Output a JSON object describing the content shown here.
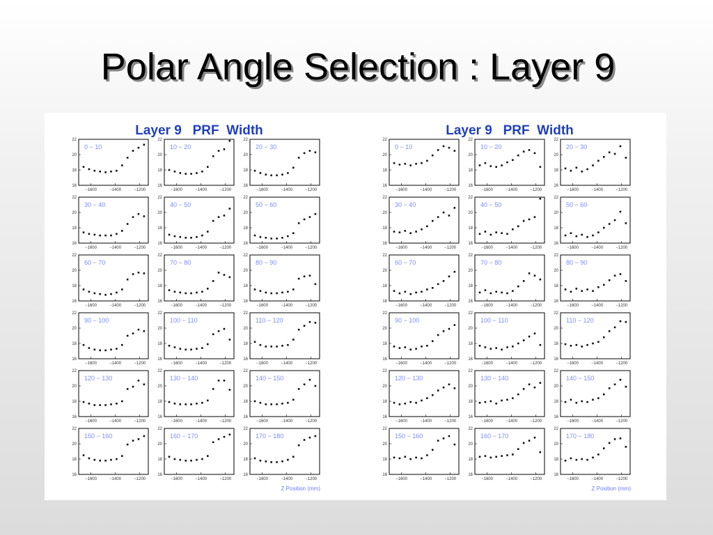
{
  "title": "Polar Angle Selection : Layer 9",
  "panels": [
    {
      "title": "Layer 9   PRF  Width",
      "x_label": "Z Position (mm)",
      "x": [
        -1660,
        -1615,
        -1570,
        -1525,
        -1480,
        -1435,
        -1390,
        -1345,
        -1300,
        -1255,
        -1210,
        -1165
      ],
      "xlim": [
        -1700,
        -1130
      ],
      "ylim": [
        16,
        22
      ],
      "xticks": [
        {
          "value": -1600,
          "label": "−1600"
        },
        {
          "value": -1400,
          "label": "−1400"
        },
        {
          "value": -1200,
          "label": "−1200"
        }
      ],
      "yticks": [
        16,
        18,
        20,
        22
      ],
      "charts": [
        {
          "type": "scatter",
          "label": "0 − 10",
          "values": [
            18.4,
            18.1,
            17.9,
            17.8,
            17.7,
            17.8,
            17.9,
            18.6,
            19.6,
            20.5,
            20.9,
            21.3
          ]
        },
        {
          "type": "scatter",
          "label": "10 − 20",
          "values": [
            18.0,
            17.8,
            17.6,
            17.5,
            17.5,
            17.6,
            17.8,
            18.4,
            19.8,
            20.5,
            20.7,
            21.8
          ]
        },
        {
          "type": "scatter",
          "label": "20 − 30",
          "values": [
            17.9,
            17.6,
            17.4,
            17.3,
            17.3,
            17.4,
            17.6,
            18.3,
            19.6,
            20.2,
            20.5,
            20.3
          ]
        },
        {
          "type": "scatter",
          "label": "30 − 40",
          "values": [
            17.4,
            17.2,
            17.1,
            17.0,
            17.0,
            17.0,
            17.2,
            17.6,
            18.5,
            19.4,
            19.8,
            19.5
          ]
        },
        {
          "type": "scatter",
          "label": "40 − 50",
          "values": [
            17.1,
            16.9,
            16.8,
            16.7,
            16.7,
            16.8,
            17.0,
            17.5,
            18.9,
            19.4,
            19.6,
            20.5
          ]
        },
        {
          "type": "scatter",
          "label": "50 − 60",
          "values": [
            17.0,
            16.8,
            16.7,
            16.6,
            16.6,
            16.7,
            16.9,
            17.3,
            18.6,
            19.1,
            19.4,
            19.8
          ]
        },
        {
          "type": "scatter",
          "label": "60 − 70",
          "values": [
            17.5,
            17.2,
            17.0,
            16.9,
            16.8,
            16.9,
            17.1,
            17.5,
            18.8,
            19.5,
            19.7,
            19.6
          ]
        },
        {
          "type": "scatter",
          "label": "70 − 80",
          "values": [
            17.4,
            17.2,
            17.1,
            17.0,
            17.0,
            17.1,
            17.2,
            17.6,
            18.6,
            19.7,
            19.4,
            19.1
          ]
        },
        {
          "type": "scatter",
          "label": "80 − 90",
          "values": [
            17.5,
            17.3,
            17.1,
            17.0,
            17.0,
            17.1,
            17.2,
            17.5,
            18.9,
            19.2,
            19.3,
            18.2
          ]
        },
        {
          "type": "scatter",
          "label": "90 − 100",
          "values": [
            17.8,
            17.4,
            17.2,
            17.1,
            17.1,
            17.2,
            17.3,
            17.8,
            19.0,
            19.3,
            19.8,
            19.6
          ]
        },
        {
          "type": "scatter",
          "label": "100 − 110",
          "values": [
            17.7,
            17.5,
            17.3,
            17.2,
            17.2,
            17.3,
            17.4,
            17.9,
            19.2,
            19.6,
            19.9,
            18.5
          ]
        },
        {
          "type": "scatter",
          "label": "110 − 120",
          "values": [
            18.2,
            17.8,
            17.6,
            17.6,
            17.6,
            17.7,
            17.8,
            18.5,
            19.8,
            20.3,
            20.8,
            20.7
          ]
        },
        {
          "type": "scatter",
          "label": "120 − 130",
          "values": [
            17.9,
            17.7,
            17.5,
            17.5,
            17.5,
            17.6,
            17.7,
            18.0,
            19.6,
            19.9,
            20.7,
            20.2
          ]
        },
        {
          "type": "scatter",
          "label": "130 − 140",
          "values": [
            17.9,
            17.7,
            17.6,
            17.6,
            17.6,
            17.7,
            17.8,
            18.1,
            19.6,
            20.7,
            20.7,
            19.5
          ]
        },
        {
          "type": "scatter",
          "label": "140 − 150",
          "values": [
            18.0,
            17.8,
            17.6,
            17.6,
            17.6,
            17.7,
            17.8,
            18.2,
            19.6,
            20.2,
            20.8,
            20.0
          ]
        },
        {
          "type": "scatter",
          "label": "150 − 160",
          "values": [
            18.5,
            18.1,
            17.9,
            17.8,
            17.8,
            17.9,
            18.0,
            18.4,
            19.9,
            20.4,
            20.6,
            21.0
          ]
        },
        {
          "type": "scatter",
          "label": "160 − 170",
          "values": [
            18.3,
            18.0,
            17.9,
            17.8,
            17.8,
            17.9,
            18.0,
            18.4,
            20.2,
            20.6,
            20.9,
            21.2
          ]
        },
        {
          "type": "scatter",
          "label": "170 − 180",
          "values": [
            18.1,
            17.8,
            17.7,
            17.6,
            17.6,
            17.7,
            17.9,
            18.3,
            19.8,
            20.5,
            20.8,
            21.0
          ]
        }
      ]
    },
    {
      "title": "Layer 9   PRF  Width",
      "x_label": "Z Position (mm)",
      "x": [
        -1660,
        -1615,
        -1570,
        -1525,
        -1480,
        -1435,
        -1390,
        -1345,
        -1300,
        -1255,
        -1210,
        -1165
      ],
      "xlim": [
        -1700,
        -1130
      ],
      "ylim": [
        16,
        22
      ],
      "xticks": [
        {
          "value": -1600,
          "label": "−1600"
        },
        {
          "value": -1400,
          "label": "−1400"
        },
        {
          "value": -1200,
          "label": "−1200"
        }
      ],
      "yticks": [
        16,
        18,
        20,
        22
      ],
      "charts": [
        {
          "type": "scatter",
          "label": "0 − 10",
          "values": [
            18.9,
            18.7,
            18.8,
            18.6,
            18.8,
            18.9,
            19.2,
            19.9,
            20.6,
            21.1,
            20.9,
            20.5
          ]
        },
        {
          "type": "scatter",
          "label": "10 − 20",
          "values": [
            18.6,
            18.9,
            18.5,
            18.4,
            18.6,
            19.0,
            19.3,
            19.9,
            20.4,
            20.6,
            20.2,
            18.4
          ]
        },
        {
          "type": "scatter",
          "label": "20 − 30",
          "values": [
            18.2,
            17.9,
            18.3,
            17.8,
            18.1,
            18.6,
            19.2,
            19.7,
            20.3,
            20.1,
            21.1,
            19.6
          ]
        },
        {
          "type": "scatter",
          "label": "30 − 40",
          "values": [
            17.5,
            17.4,
            17.6,
            17.3,
            17.5,
            17.8,
            18.2,
            18.9,
            19.4,
            20.0,
            19.6,
            20.6
          ]
        },
        {
          "type": "scatter",
          "label": "40 − 50",
          "values": [
            17.2,
            17.5,
            17.1,
            17.4,
            17.3,
            17.2,
            17.8,
            18.2,
            18.9,
            19.1,
            19.4,
            21.8
          ]
        },
        {
          "type": "scatter",
          "label": "50 − 60",
          "values": [
            17.0,
            17.3,
            16.9,
            17.1,
            16.8,
            17.0,
            17.4,
            18.0,
            18.5,
            19.0,
            20.1,
            18.6
          ]
        },
        {
          "type": "scatter",
          "label": "60 − 70",
          "values": [
            17.3,
            17.0,
            17.2,
            16.9,
            17.1,
            17.2,
            17.5,
            17.7,
            18.2,
            18.6,
            19.2,
            19.8
          ]
        },
        {
          "type": "scatter",
          "label": "70 − 80",
          "values": [
            17.1,
            17.4,
            17.0,
            17.2,
            17.1,
            17.0,
            17.3,
            17.9,
            18.6,
            19.6,
            19.3,
            18.8
          ]
        },
        {
          "type": "scatter",
          "label": "80 − 90",
          "values": [
            17.5,
            17.2,
            17.6,
            17.3,
            17.5,
            17.3,
            17.8,
            18.1,
            18.7,
            19.3,
            19.5,
            18.6
          ]
        },
        {
          "type": "scatter",
          "label": "90 − 100",
          "values": [
            17.6,
            17.4,
            17.5,
            17.2,
            17.3,
            17.6,
            17.7,
            18.3,
            19.1,
            19.6,
            19.9,
            20.4
          ]
        },
        {
          "type": "scatter",
          "label": "100 − 110",
          "values": [
            17.7,
            17.5,
            17.3,
            17.4,
            17.2,
            17.5,
            17.6,
            18.0,
            18.4,
            18.9,
            19.3,
            17.8
          ]
        },
        {
          "type": "scatter",
          "label": "110 − 120",
          "values": [
            17.9,
            17.7,
            17.8,
            17.6,
            17.8,
            18.0,
            18.2,
            18.8,
            19.6,
            20.1,
            20.9,
            20.8
          ]
        },
        {
          "type": "scatter",
          "label": "120 − 130",
          "values": [
            17.8,
            17.6,
            17.7,
            17.9,
            17.8,
            18.1,
            18.4,
            18.8,
            19.4,
            19.8,
            20.2,
            19.7
          ]
        },
        {
          "type": "scatter",
          "label": "130 − 140",
          "values": [
            17.8,
            17.9,
            18.0,
            17.7,
            18.1,
            18.2,
            18.4,
            18.9,
            19.6,
            20.2,
            19.8,
            20.4
          ]
        },
        {
          "type": "scatter",
          "label": "140 − 150",
          "values": [
            17.9,
            18.2,
            17.8,
            18.0,
            17.9,
            18.2,
            18.4,
            18.9,
            19.7,
            20.2,
            20.8,
            19.9
          ]
        },
        {
          "type": "scatter",
          "label": "150 − 160",
          "values": [
            18.2,
            18.1,
            18.3,
            18.0,
            18.2,
            18.1,
            18.5,
            19.2,
            20.4,
            20.7,
            21.0,
            19.9
          ]
        },
        {
          "type": "scatter",
          "label": "160 − 170",
          "values": [
            18.3,
            18.4,
            18.2,
            18.3,
            18.4,
            18.5,
            18.6,
            19.3,
            20.1,
            20.4,
            20.8,
            18.9
          ]
        },
        {
          "type": "scatter",
          "label": "170 − 180",
          "values": [
            17.8,
            18.1,
            17.9,
            18.0,
            17.9,
            18.2,
            18.6,
            19.4,
            20.1,
            20.6,
            20.7,
            19.6
          ]
        }
      ]
    }
  ]
}
